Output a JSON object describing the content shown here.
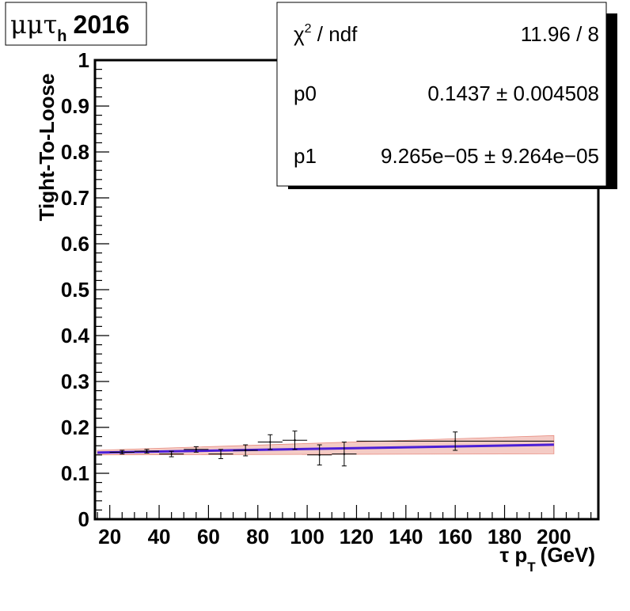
{
  "chart_data": {
    "type": "scatter",
    "title": {
      "channel": "μμτ",
      "channel_sub": "h",
      "year": "2016"
    },
    "xlabel": {
      "main": "τ p",
      "sub": "T",
      "unit": "(GeV)"
    },
    "ylabel": "Tight-To-Loose",
    "xlim": [
      14,
      218
    ],
    "ylim": [
      0,
      1
    ],
    "x_ticks": [
      20,
      40,
      60,
      80,
      100,
      120,
      140,
      160,
      180,
      200
    ],
    "y_ticks": [
      0,
      0.1,
      0.2,
      0.3,
      0.4,
      0.5,
      0.6,
      0.7,
      0.8,
      0.9,
      1
    ],
    "y_tick_labels": [
      "0",
      "0.1",
      "0.2",
      "0.3",
      "0.4",
      "0.5",
      "0.6",
      "0.7",
      "0.8",
      "0.9",
      "1"
    ],
    "grid": false,
    "points": [
      {
        "x": 25,
        "xerr": 5,
        "y": 0.146,
        "yerr": 0.004
      },
      {
        "x": 35,
        "xerr": 5,
        "y": 0.148,
        "yerr": 0.004
      },
      {
        "x": 45,
        "xerr": 5,
        "y": 0.142,
        "yerr": 0.006
      },
      {
        "x": 55,
        "xerr": 5,
        "y": 0.152,
        "yerr": 0.006
      },
      {
        "x": 65,
        "xerr": 5,
        "y": 0.142,
        "yerr": 0.01
      },
      {
        "x": 75,
        "xerr": 5,
        "y": 0.15,
        "yerr": 0.012
      },
      {
        "x": 85,
        "xerr": 5,
        "y": 0.168,
        "yerr": 0.016
      },
      {
        "x": 95,
        "xerr": 5,
        "y": 0.172,
        "yerr": 0.02
      },
      {
        "x": 105,
        "xerr": 5,
        "y": 0.14,
        "yerr": 0.022
      },
      {
        "x": 115,
        "xerr": 5,
        "y": 0.142,
        "yerr": 0.026
      },
      {
        "x": 160,
        "xerr": 40,
        "y": 0.17,
        "yerr": 0.02
      }
    ],
    "fit": {
      "function": "p0 + p1*x",
      "p0": 0.1437,
      "p1": 9.265e-05,
      "x_range": [
        15,
        200
      ],
      "band_halfwidth": [
        0.005,
        0.02
      ],
      "line_color": "#4b1fd6",
      "band_color": "#e06a5a"
    },
    "stats_box": {
      "rows": [
        {
          "name": "χ",
          "sup": "2",
          "name_suffix": " / ndf",
          "value": "11.96 / 8"
        },
        {
          "name": "p0",
          "sup": "",
          "name_suffix": "",
          "value": "0.1437 ± 0.004508"
        },
        {
          "name": "p1",
          "sup": "",
          "name_suffix": "",
          "value": "9.265e−05 ± 9.264e−05"
        }
      ]
    }
  }
}
